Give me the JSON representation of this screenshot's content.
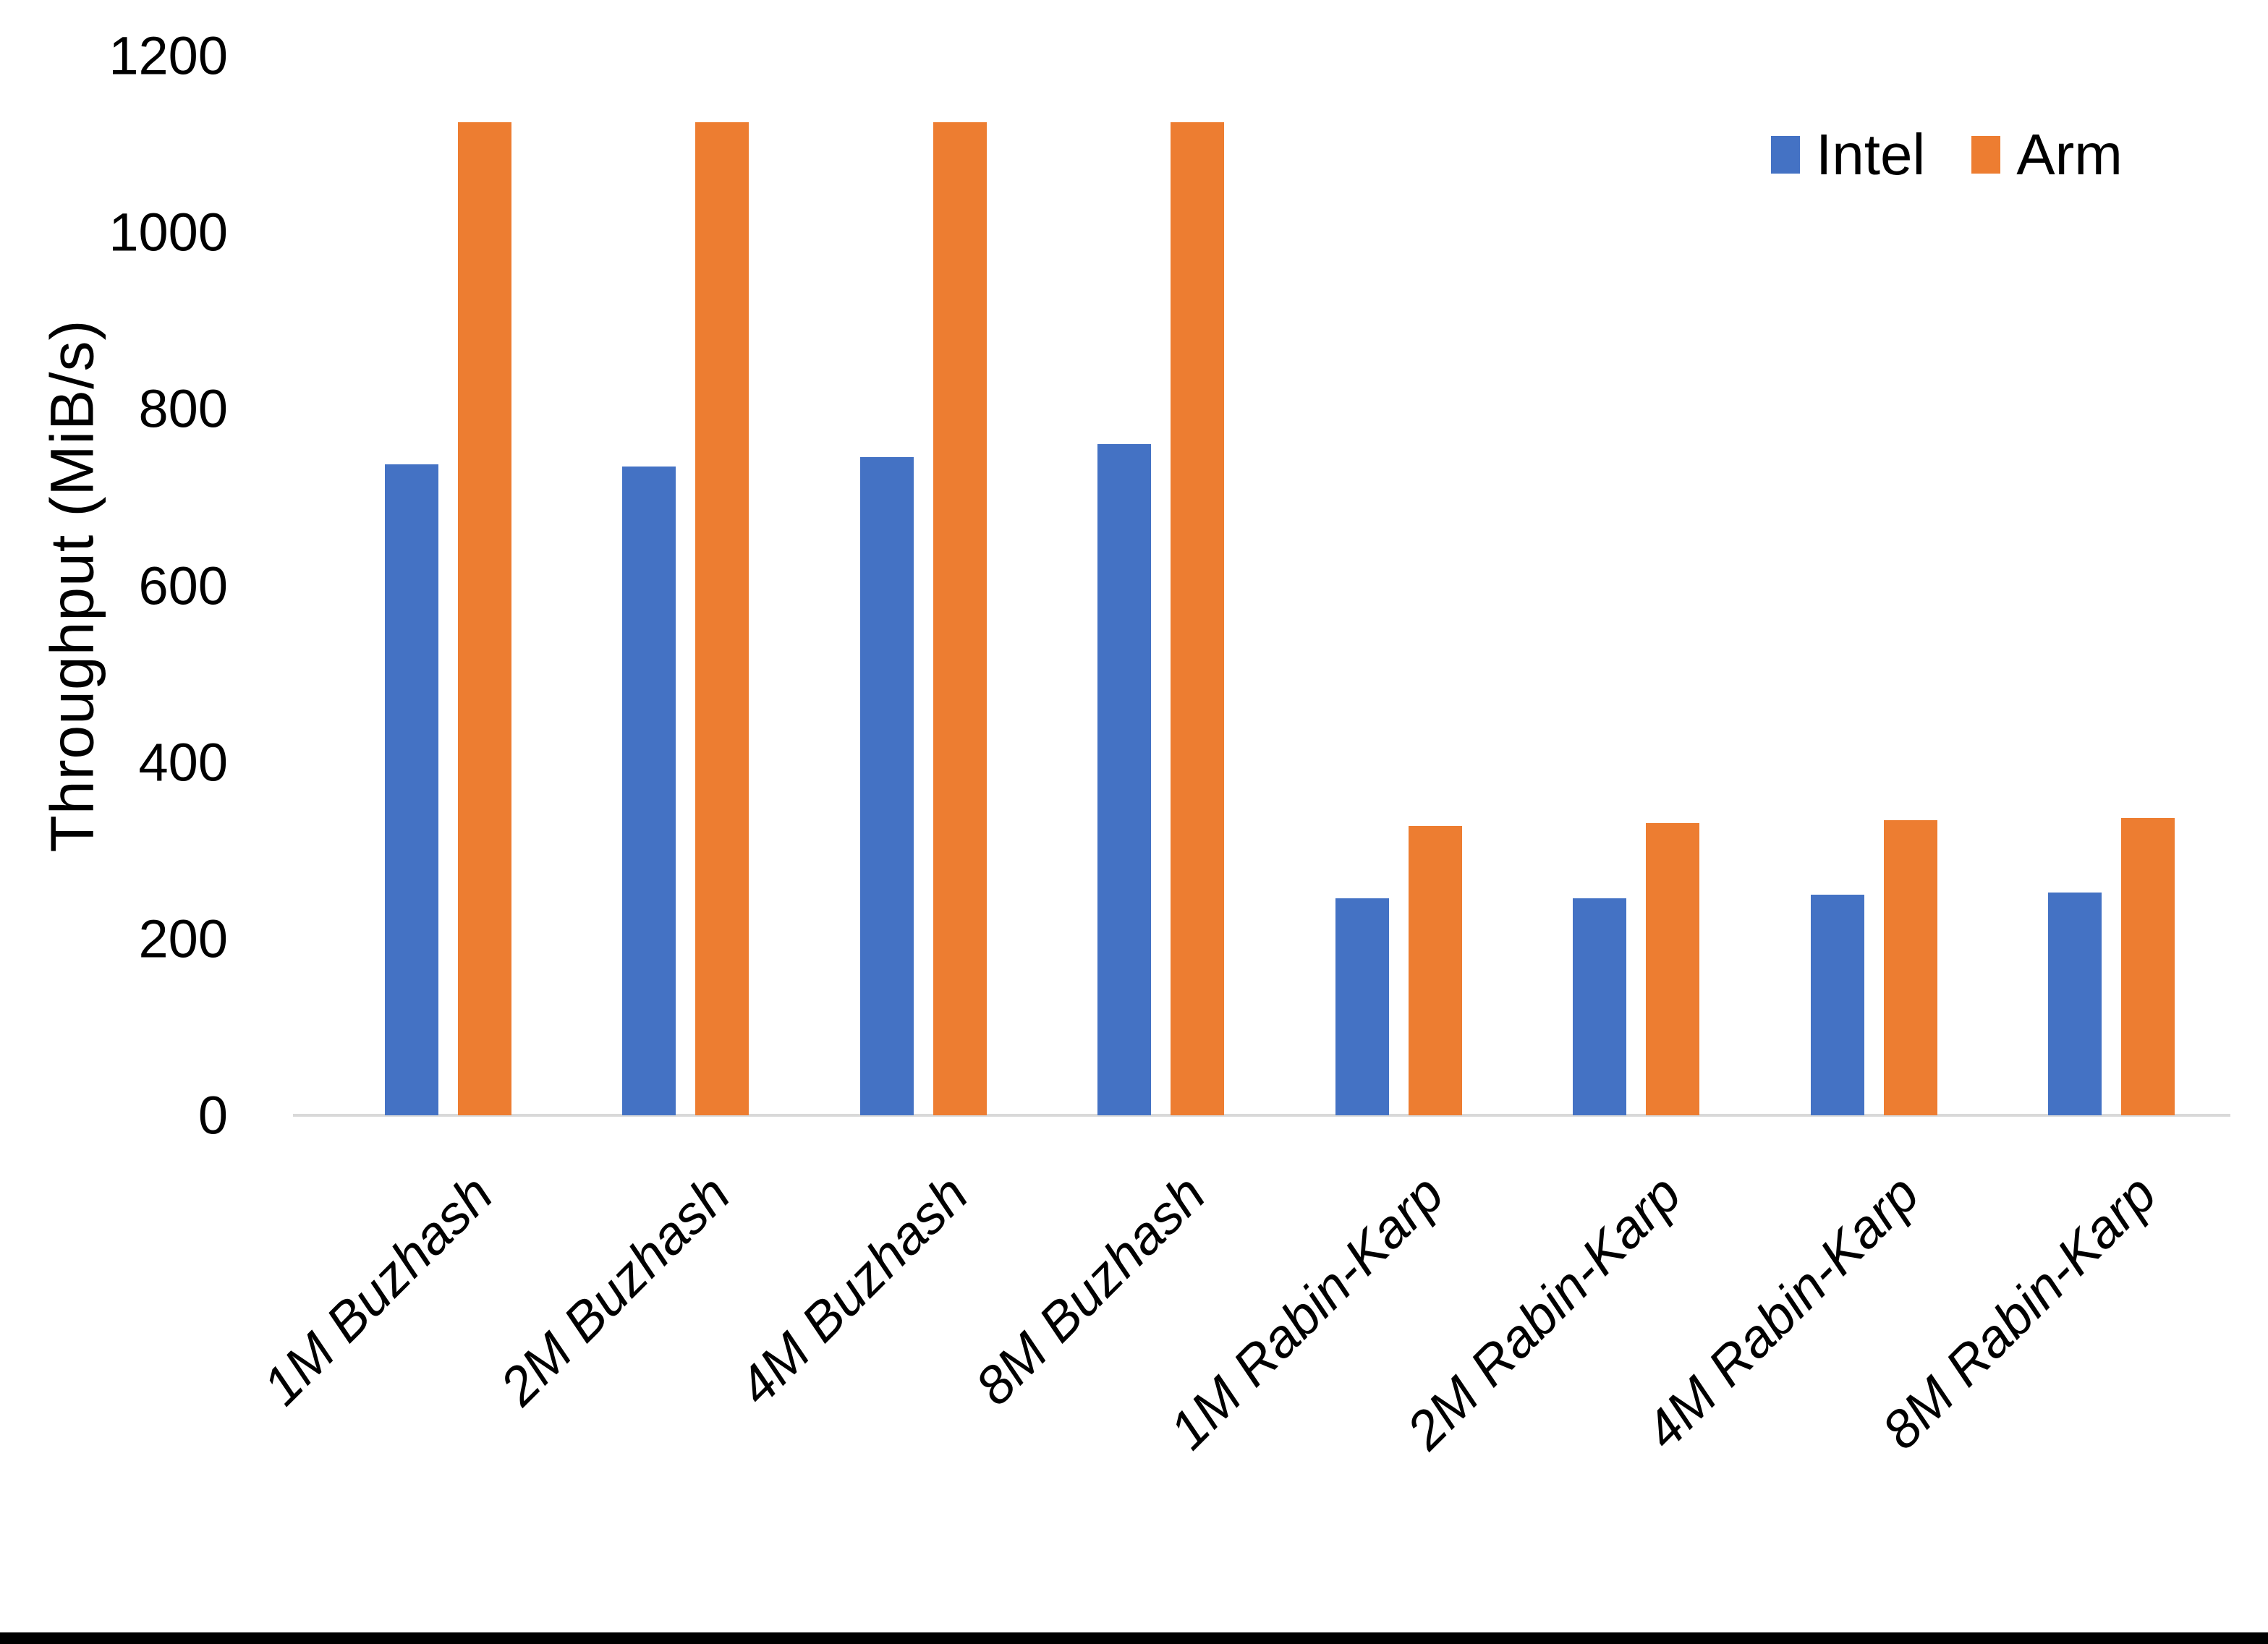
{
  "chart_data": {
    "type": "bar",
    "title": "",
    "xlabel": "",
    "ylabel": "Throughput (MiB/s)",
    "categories": [
      "1M Buzhash",
      "2M Buzhash",
      "4M Buzhash",
      "8M Buzhash",
      "1M Rabin-Karp",
      "2M Rabin-Karp",
      "4M Rabin-Karp",
      "8M Rabin-Karp"
    ],
    "series": [
      {
        "name": "Intel",
        "color": "#4472C4",
        "values": [
          737,
          735,
          745,
          760,
          246,
          246,
          250,
          252
        ]
      },
      {
        "name": "Arm",
        "color": "#ED7D31",
        "values": [
          1125,
          1125,
          1125,
          1125,
          328,
          331,
          334,
          337
        ]
      }
    ],
    "ylim": [
      0,
      1200
    ],
    "yticks": [
      0,
      200,
      400,
      600,
      800,
      1000,
      1200
    ],
    "grid": false,
    "legend_position": "top-right",
    "axis_line_color": "#D9D9D9",
    "text_color": "#000000",
    "background_color": "#FFFFFF",
    "bottom_border_color": "#000000"
  }
}
